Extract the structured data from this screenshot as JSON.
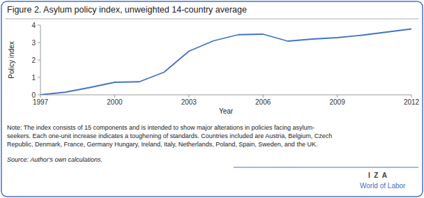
{
  "chart_data": {
    "type": "line",
    "title": "Figure 2. Asylum policy index, unweighted 14-country average",
    "xlabel": "Year",
    "ylabel": "Policy index",
    "x": [
      1997,
      1998,
      1999,
      2000,
      2001,
      2002,
      2003,
      2004,
      2005,
      2006,
      2007,
      2008,
      2009,
      2010,
      2011,
      2012
    ],
    "values": [
      0.0,
      0.15,
      0.42,
      0.72,
      0.75,
      1.3,
      2.5,
      3.1,
      3.45,
      3.48,
      3.08,
      3.2,
      3.28,
      3.42,
      3.6,
      3.78
    ],
    "color": "#4472C4",
    "xlim": [
      1997,
      2012
    ],
    "ylim": [
      0,
      4
    ],
    "xticks": [
      1997,
      2000,
      2003,
      2006,
      2009,
      2012
    ],
    "yticks": [
      0,
      1,
      2,
      3,
      4
    ],
    "grid": false,
    "annotations": [
      "Note: The index consists of 15 components and is intended to show major alterations in policies facing asylum-\nseekers. Each one-unit increase indicates a toughening of standards. Countries included are Austria, Belgium, Czech\nRepublic, Denmark, France, Germany Hungary, Ireland, Italy, Netherlands, Poland, Spain, Sweden, and the UK.",
      "Source: Author's own calculations.",
      "I  Z  A",
      "World of Labor"
    ]
  }
}
